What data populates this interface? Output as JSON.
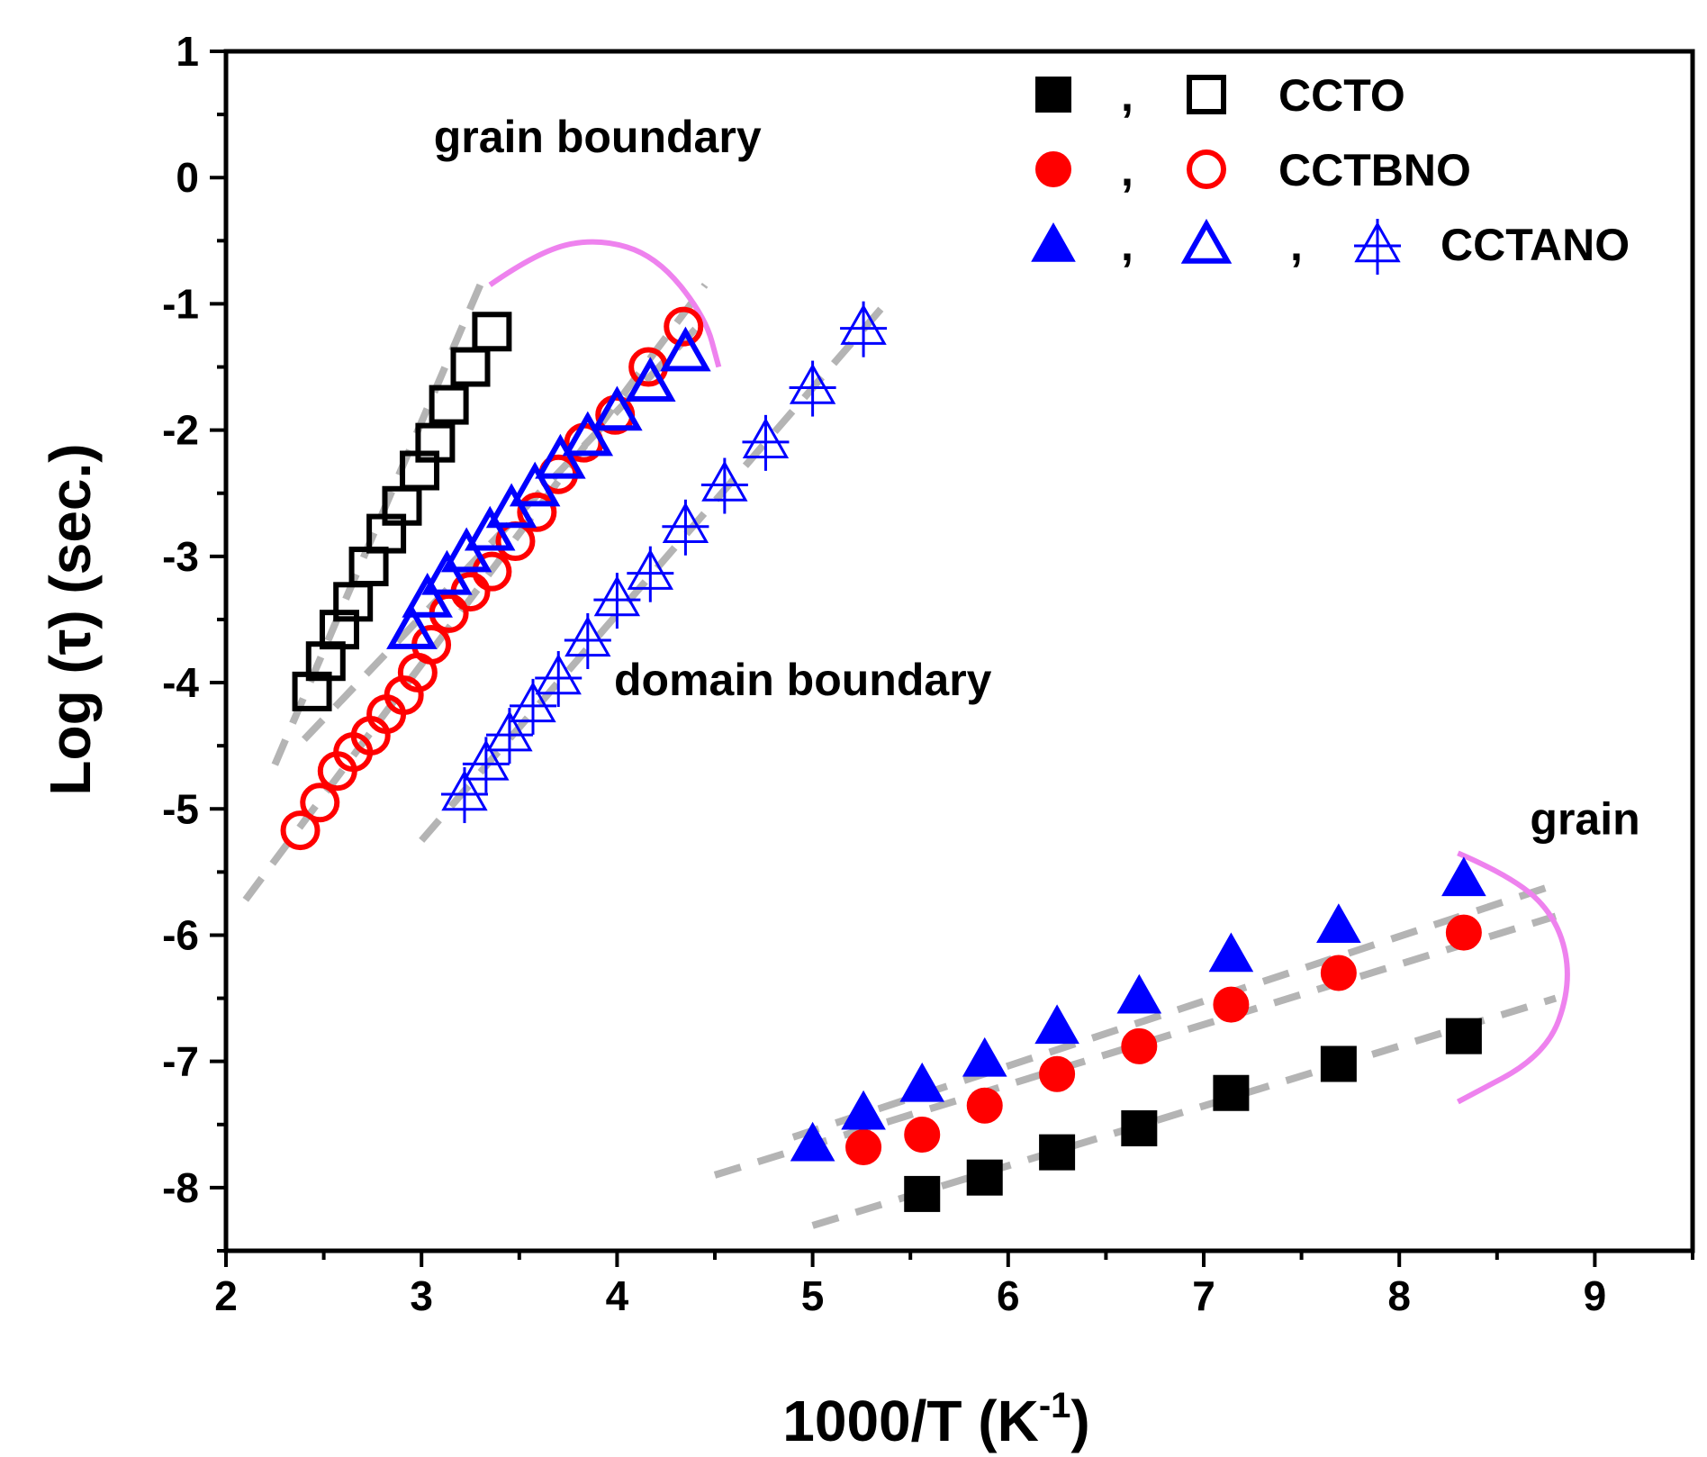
{
  "chart_data": {
    "type": "scatter",
    "title": "",
    "xlabel": "1000/T (K",
    "xlabel_sup": "-1",
    "xlabel_close": ")",
    "ylabel": "Log (τ) (sec.)",
    "xlim": [
      2,
      9.5
    ],
    "ylim": [
      -8.5,
      1
    ],
    "xticks": [
      2,
      3,
      4,
      5,
      6,
      7,
      8,
      9
    ],
    "yticks": [
      1,
      0,
      -1,
      -2,
      -3,
      -4,
      -5,
      -6,
      -7,
      -8
    ],
    "grid": false,
    "legend_placement": "top-right",
    "legend": [
      {
        "text": "CCTO",
        "symbols": [
          "filled-square",
          "open-square"
        ]
      },
      {
        "text": "CCTBNO",
        "symbols": [
          "filled-circle",
          "open-circle"
        ]
      },
      {
        "text": "CCTANO",
        "symbols": [
          "filled-triangle",
          "open-triangle",
          "cross-triangle"
        ]
      }
    ],
    "annotations": [
      {
        "text": "grain boundary",
        "x": 3.9,
        "y": 0.2
      },
      {
        "text": "domain boundary",
        "x": 4.95,
        "y": -4.1
      },
      {
        "text": "grain",
        "x": 8.95,
        "y": -5.2
      }
    ],
    "colors": {
      "ccto": "#000000",
      "cctbno": "#ff0000",
      "cctano": "#0000ff",
      "fit": "#b4b4b4",
      "arc": "#ee82ee"
    },
    "series": [
      {
        "name": "CCTO grain boundary",
        "marker": "open-square",
        "color": "#000000",
        "x": [
          2.44,
          2.51,
          2.58,
          2.65,
          2.73,
          2.82,
          2.9,
          2.99,
          3.07,
          3.14,
          3.25,
          3.36
        ],
        "y": [
          -4.07,
          -3.83,
          -3.58,
          -3.36,
          -3.08,
          -2.82,
          -2.6,
          -2.32,
          -2.1,
          -1.8,
          -1.5,
          -1.22
        ]
      },
      {
        "name": "CCTBNO grain boundary",
        "marker": "open-circle",
        "color": "#ff0000",
        "x": [
          2.38,
          2.48,
          2.57,
          2.65,
          2.74,
          2.82,
          2.91,
          2.98,
          3.05,
          3.14,
          3.25,
          3.36,
          3.48,
          3.59,
          3.7,
          3.83,
          3.99,
          4.16,
          4.34
        ],
        "y": [
          -5.17,
          -4.95,
          -4.7,
          -4.55,
          -4.42,
          -4.25,
          -4.1,
          -3.92,
          -3.7,
          -3.45,
          -3.28,
          -3.12,
          -2.88,
          -2.65,
          -2.35,
          -2.1,
          -1.88,
          -1.5,
          -1.18
        ]
      },
      {
        "name": "CCTANO grain boundary",
        "marker": "open-triangle",
        "color": "#0000ff",
        "x": [
          2.95,
          3.03,
          3.13,
          3.23,
          3.35,
          3.46,
          3.58,
          3.71,
          3.85,
          4.0,
          4.17,
          4.35
        ],
        "y": [
          -3.58,
          -3.33,
          -3.15,
          -2.97,
          -2.8,
          -2.62,
          -2.45,
          -2.23,
          -2.05,
          -1.85,
          -1.62,
          -1.38
        ]
      },
      {
        "name": "CCTANO domain boundary",
        "marker": "cross-triangle",
        "color": "#0000ff",
        "x": [
          3.22,
          3.33,
          3.45,
          3.57,
          3.7,
          3.85,
          4.0,
          4.17,
          4.35,
          4.55,
          4.76,
          5.0,
          5.26
        ],
        "y": [
          -4.87,
          -4.63,
          -4.4,
          -4.17,
          -3.95,
          -3.65,
          -3.33,
          -3.12,
          -2.75,
          -2.42,
          -2.08,
          -1.65,
          -1.18
        ]
      },
      {
        "name": "CCTO grain",
        "marker": "filled-square",
        "color": "#000000",
        "x": [
          5.56,
          5.88,
          6.25,
          6.67,
          7.14,
          7.69,
          8.33
        ],
        "y": [
          -8.05,
          -7.92,
          -7.72,
          -7.53,
          -7.25,
          -7.02,
          -6.8
        ]
      },
      {
        "name": "CCTBNO grain",
        "marker": "filled-circle",
        "color": "#ff0000",
        "x": [
          5.26,
          5.56,
          5.88,
          6.25,
          6.67,
          7.14,
          7.69,
          8.33
        ],
        "y": [
          -7.68,
          -7.58,
          -7.35,
          -7.1,
          -6.88,
          -6.55,
          -6.3,
          -5.98
        ]
      },
      {
        "name": "CCTANO grain",
        "marker": "filled-triangle",
        "color": "#0000ff",
        "x": [
          5.0,
          5.26,
          5.56,
          5.88,
          6.25,
          6.67,
          7.14,
          7.69,
          8.33
        ],
        "y": [
          -7.65,
          -7.4,
          -7.18,
          -6.98,
          -6.72,
          -6.48,
          -6.15,
          -5.92,
          -5.55
        ]
      }
    ],
    "fit_lines": [
      {
        "x": [
          2.25,
          3.3
        ],
        "y": [
          -4.65,
          -0.85
        ]
      },
      {
        "x": [
          2.1,
          4.45
        ],
        "y": [
          -5.72,
          -0.85
        ]
      },
      {
        "x": [
          2.4,
          4.4
        ],
        "y": [
          -4.45,
          -1.2
        ]
      },
      {
        "x": [
          3.0,
          5.4
        ],
        "y": [
          -5.25,
          -0.95
        ]
      },
      {
        "x": [
          4.5,
          8.8
        ],
        "y": [
          -7.9,
          -5.85
        ]
      },
      {
        "x": [
          4.9,
          8.8
        ],
        "y": [
          -7.6,
          -5.6
        ]
      },
      {
        "x": [
          5.0,
          8.8
        ],
        "y": [
          -8.3,
          -6.5
        ]
      }
    ],
    "arcs": [
      {
        "x": [
          3.35,
          3.6,
          3.9,
          4.2,
          4.45,
          4.52
        ],
        "y": [
          -0.85,
          -0.58,
          -0.48,
          -0.62,
          -1.1,
          -1.5
        ]
      },
      {
        "x": [
          8.3,
          8.6,
          8.82,
          8.88,
          8.75,
          8.3
        ],
        "y": [
          -5.35,
          -5.55,
          -5.9,
          -6.4,
          -6.95,
          -7.32
        ]
      }
    ]
  }
}
